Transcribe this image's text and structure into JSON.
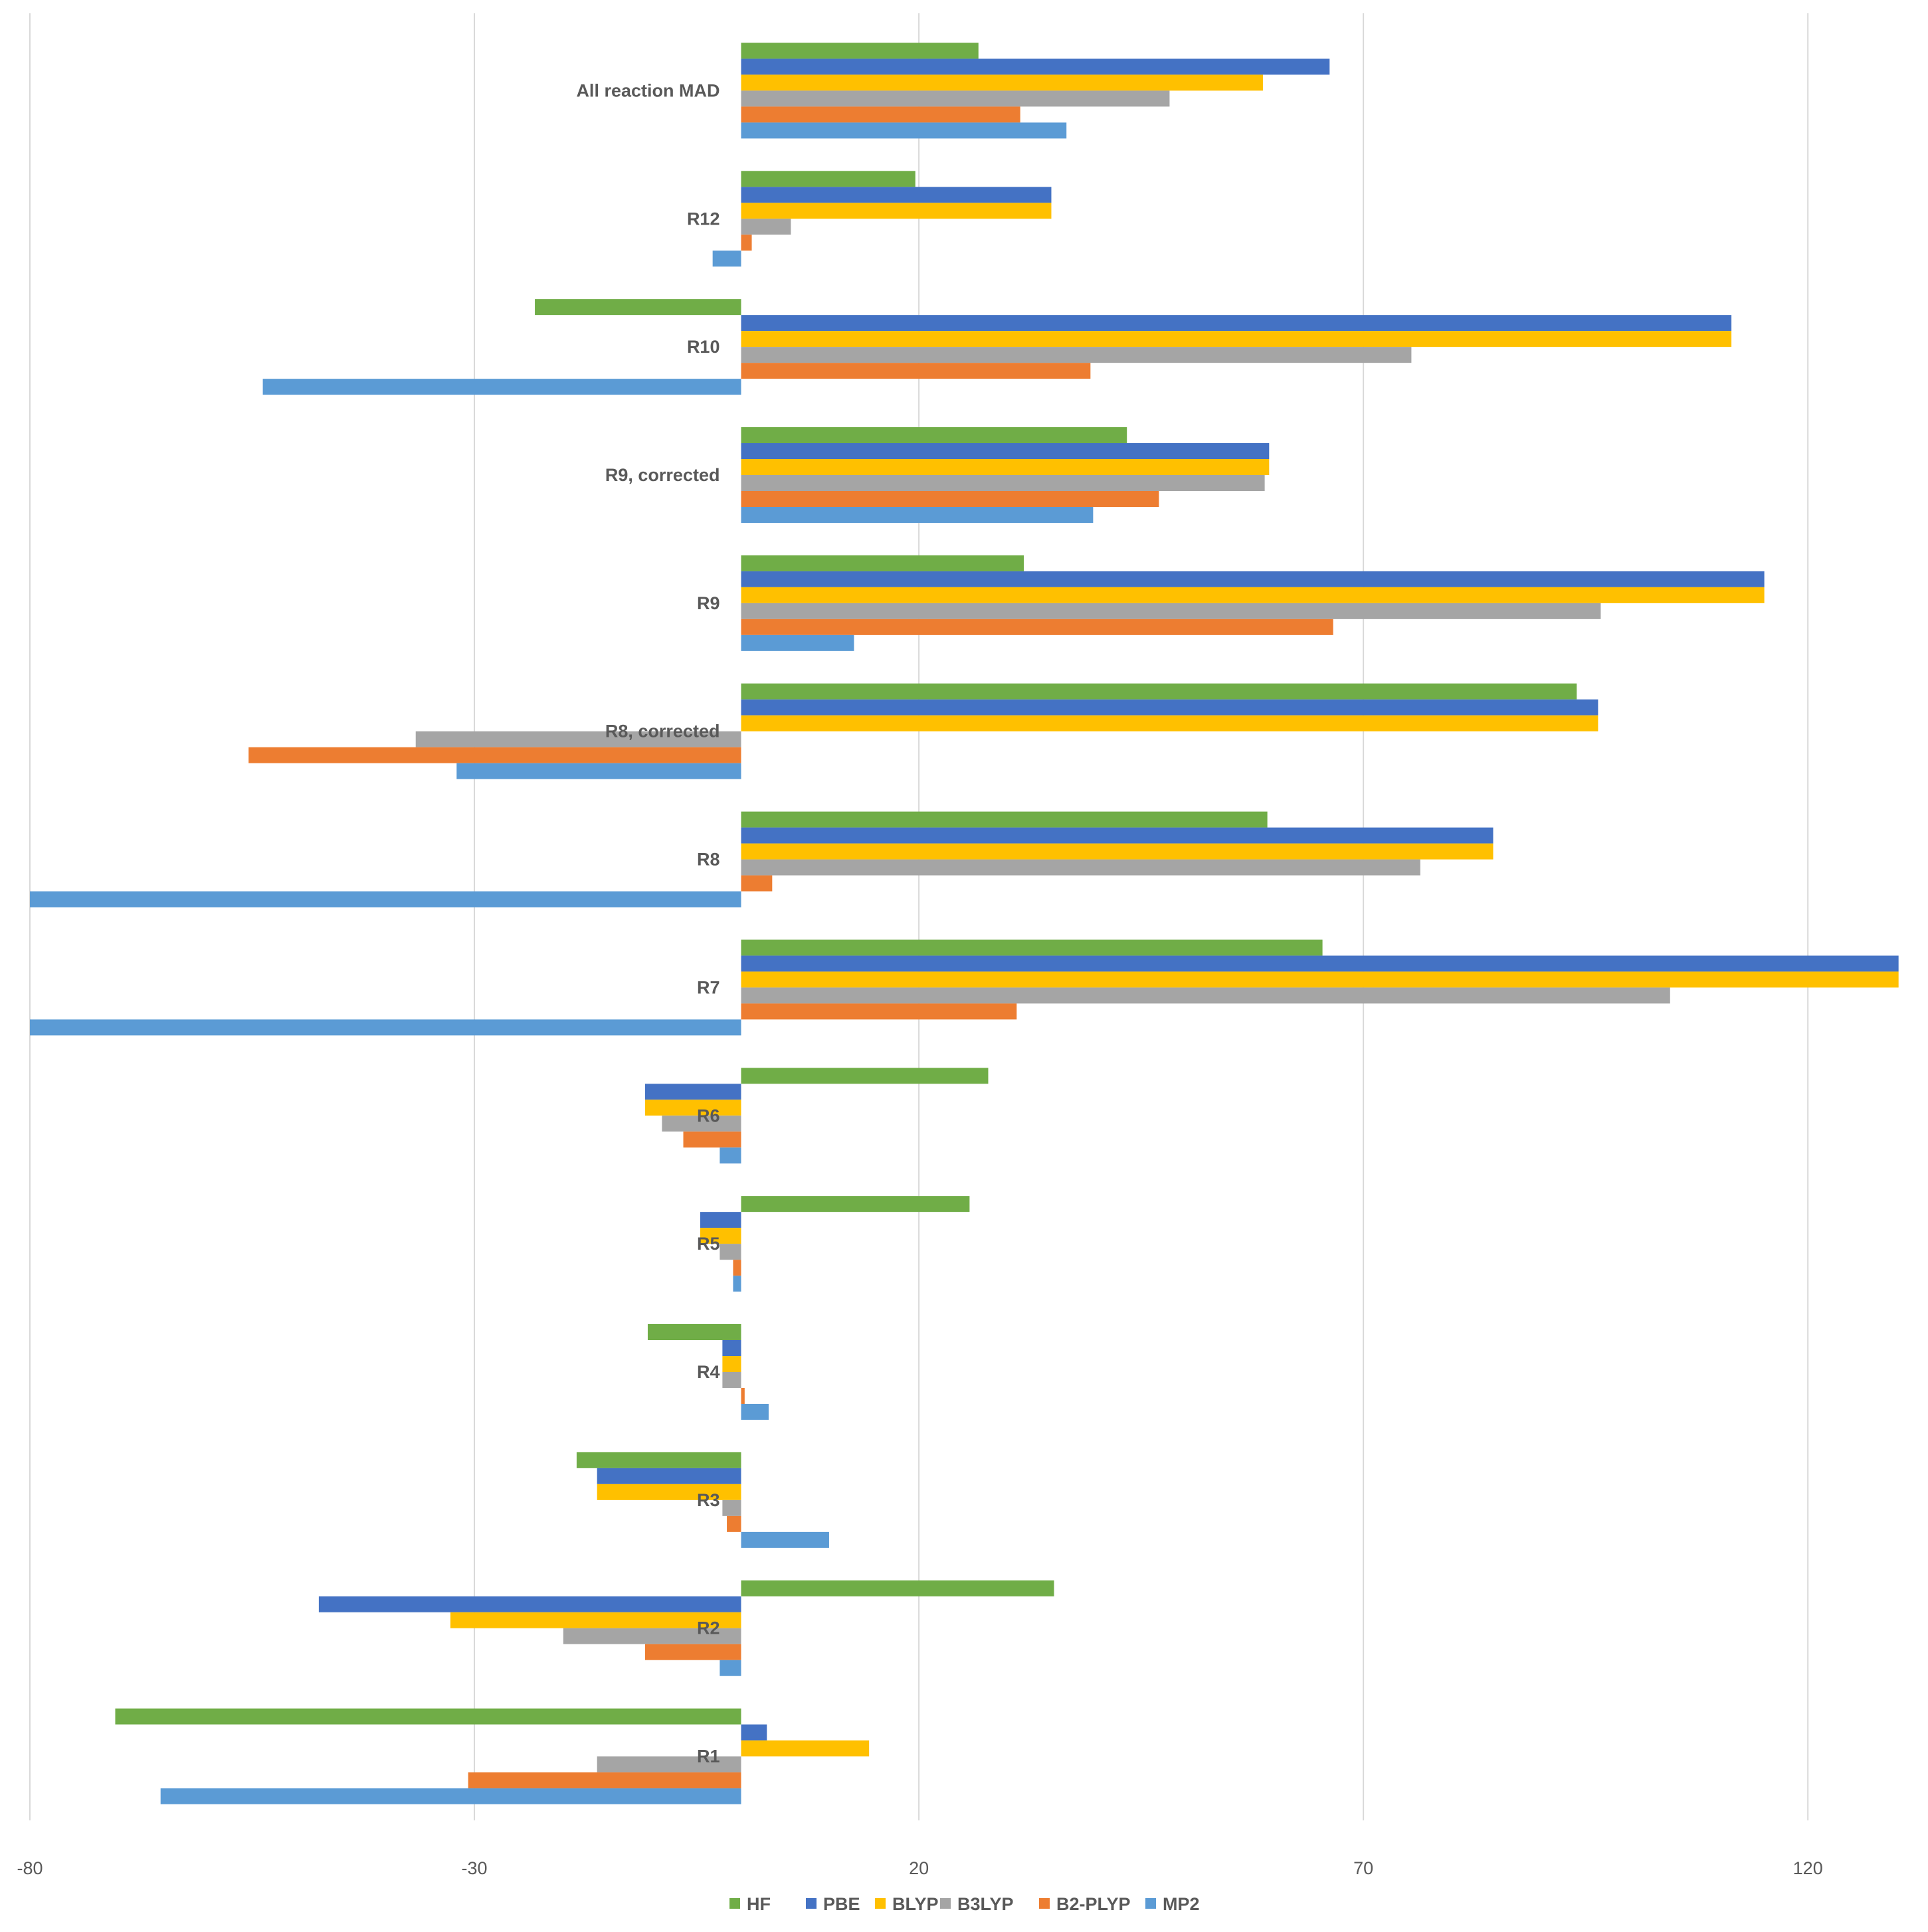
{
  "chart_data": {
    "type": "bar",
    "orientation": "horizontal",
    "categories": [
      "R1",
      "R2",
      "R3",
      "R4",
      "R5",
      "R6",
      "R7",
      "R8",
      "R8, corrected",
      "R9",
      "R9, corrected",
      "R10",
      "R12",
      "All reaction MAD"
    ],
    "series": [
      {
        "name": "HF",
        "color": "#70AD47",
        "values": [
          -70.4,
          35.2,
          -18.5,
          -10.5,
          25.7,
          27.8,
          65.4,
          59.2,
          94.0,
          31.8,
          43.4,
          -23.2,
          19.6,
          26.7
        ]
      },
      {
        "name": "PBE",
        "color": "#4472C4",
        "values": [
          2.9,
          -47.5,
          -16.2,
          -2.1,
          -4.6,
          -10.8,
          130.2,
          84.6,
          96.4,
          115.1,
          59.4,
          111.4,
          34.9,
          66.2
        ]
      },
      {
        "name": "BLYP",
        "color": "#FFC000",
        "values": [
          14.4,
          -32.7,
          -16.2,
          -2.1,
          -4.6,
          -10.8,
          130.2,
          84.6,
          96.4,
          115.1,
          59.4,
          111.4,
          34.9,
          58.7
        ]
      },
      {
        "name": "B3LYP",
        "color": "#A5A5A5",
        "values": [
          -16.2,
          -20.0,
          -2.1,
          -2.1,
          -2.4,
          -8.9,
          104.5,
          76.4,
          -36.6,
          96.7,
          58.9,
          75.4,
          5.6,
          48.2
        ]
      },
      {
        "name": "B2-PLYP",
        "color": "#ED7D31",
        "values": [
          -30.7,
          -10.8,
          -1.6,
          0.4,
          -0.9,
          -6.5,
          31.0,
          3.5,
          -55.4,
          66.6,
          47.0,
          39.3,
          1.2,
          31.4
        ]
      },
      {
        "name": "MP2",
        "color": "#5B9BD5",
        "values": [
          -65.3,
          -2.4,
          9.9,
          3.1,
          -0.9,
          -2.4,
          -80.0,
          -80.0,
          -32.0,
          12.7,
          39.6,
          -53.8,
          -3.2,
          36.6
        ]
      }
    ],
    "xlim": [
      -80,
      130
    ],
    "xticks": [
      "-80",
      "-30",
      "20",
      "70",
      "120"
    ],
    "xtick_values": [
      -80,
      -30,
      20,
      70,
      120
    ],
    "title": "",
    "xlabel": "",
    "ylabel": "",
    "grid": "vertical",
    "legend": "bottom"
  }
}
